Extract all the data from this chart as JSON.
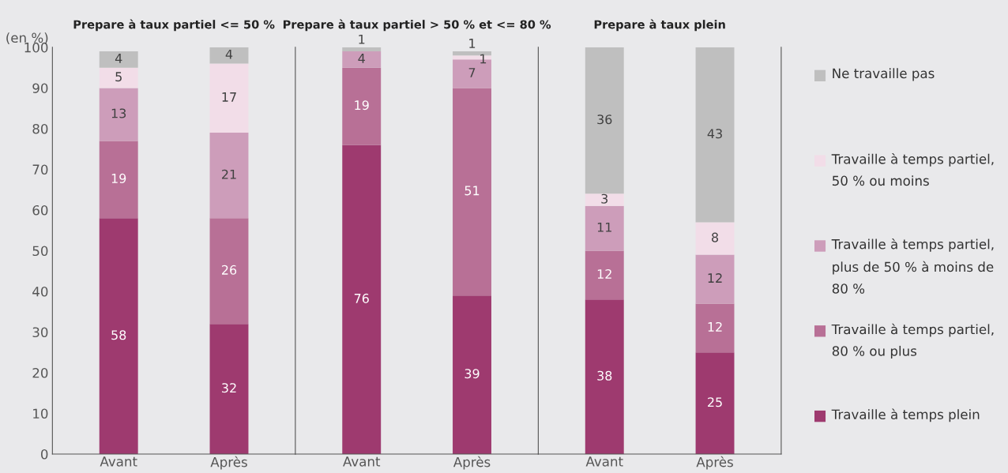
{
  "chart_data": [
    {
      "type": "bar",
      "stacked": true,
      "data_labels": true,
      "title": "Prepare à taux partiel <= 50 %",
      "ylabel": "(en %)",
      "categories": [
        "Avant",
        "Après"
      ],
      "ylim": [
        0,
        100
      ],
      "yticks": [
        0,
        10,
        20,
        30,
        40,
        50,
        60,
        70,
        80,
        90,
        100
      ],
      "series": [
        {
          "color": "#9e3a6f",
          "values": [
            58,
            32
          ]
        },
        {
          "color": "#b87096",
          "values": [
            19,
            26
          ]
        },
        {
          "color": "#cd9dba",
          "values": [
            13,
            21
          ]
        },
        {
          "color": "#f2dde8",
          "values": [
            5,
            17
          ]
        },
        {
          "color": "#bfbfbf",
          "values": [
            4,
            4
          ]
        }
      ]
    },
    {
      "type": "bar",
      "stacked": true,
      "data_labels": true,
      "tick_labels": "x",
      "title": "Prepare à taux partiel > 50 % et <= 80 %",
      "categories": [
        "Avant",
        "Après"
      ],
      "ylim": [
        0,
        100
      ],
      "series": [
        {
          "color": "#9e3a6f",
          "values": [
            76,
            39
          ]
        },
        {
          "color": "#b87096",
          "values": [
            19,
            51
          ]
        },
        {
          "color": "#cd9dba",
          "values": [
            4,
            7
          ]
        },
        {
          "color": "#f2dde8",
          "values": [
            null,
            1
          ]
        },
        {
          "color": "#bfbfbf",
          "values": [
            1,
            1
          ]
        }
      ]
    },
    {
      "type": "bar",
      "stacked": true,
      "data_labels": true,
      "tick_labels": "x",
      "legend": "right",
      "title": "Prepare à taux plein",
      "categories": [
        "Avant",
        "Après"
      ],
      "ylim": [
        0,
        100
      ],
      "series": [
        {
          "name": "Travaille à temps plein",
          "color": "#9e3a6f",
          "values": [
            38,
            25
          ]
        },
        {
          "name": "Travaille à temps partiel, 80 % ou plus",
          "color": "#b87096",
          "values": [
            12,
            12
          ]
        },
        {
          "name": "Travaille à temps partiel, plus de 50 % à moins de 80 %",
          "color": "#cd9dba",
          "values": [
            11,
            12
          ]
        },
        {
          "name": "Travaille à temps partiel, 50 % ou moins",
          "color": "#f2dde8",
          "values": [
            3,
            8
          ]
        },
        {
          "name": "Ne travaille pas",
          "color": "#bfbfbf",
          "values": [
            36,
            43
          ]
        }
      ]
    }
  ]
}
